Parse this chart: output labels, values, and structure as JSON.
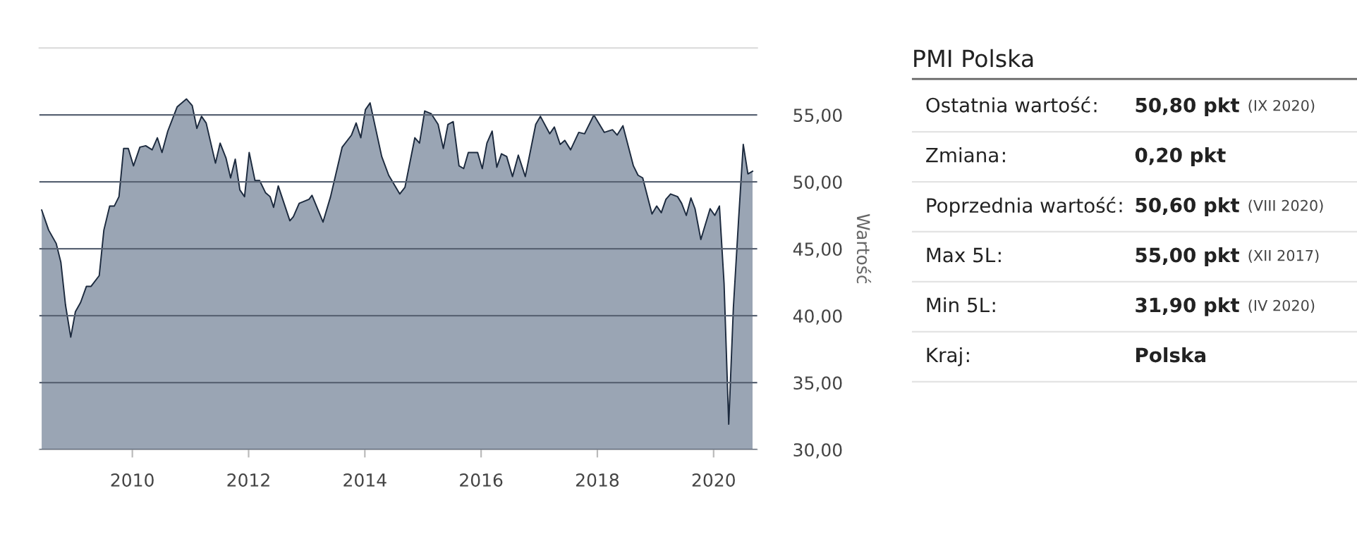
{
  "chart_data": [
    {
      "type": "area",
      "ylabel": "Wartość",
      "xlim": [
        2008.4,
        2020.75
      ],
      "ylim": [
        30,
        60
      ],
      "xticks": [
        {
          "value": 2010,
          "label": "2010"
        },
        {
          "value": 2012,
          "label": "2012"
        },
        {
          "value": 2014,
          "label": "2014"
        },
        {
          "value": 2016,
          "label": "2016"
        },
        {
          "value": 2018,
          "label": "2018"
        },
        {
          "value": 2020,
          "label": "2020"
        }
      ],
      "yticks": [
        {
          "value": 30,
          "label": "30,00"
        },
        {
          "value": 35,
          "label": "35,00"
        },
        {
          "value": 40,
          "label": "40,00"
        },
        {
          "value": 45,
          "label": "45,00"
        },
        {
          "value": 50,
          "label": "50,00"
        },
        {
          "value": 55,
          "label": "55,00"
        }
      ],
      "grid": "y",
      "legend": false,
      "marker": "none",
      "line_style": "solid",
      "series": [
        {
          "color": "#9aa5b4",
          "x": [
            2008.44,
            2008.56,
            2008.69,
            2008.77,
            2008.85,
            2008.94,
            2009.02,
            2009.11,
            2009.21,
            2009.29,
            2009.43,
            2009.51,
            2009.61,
            2009.69,
            2009.77,
            2009.85,
            2009.93,
            2010.02,
            2010.13,
            2010.23,
            2010.34,
            2010.43,
            2010.51,
            2010.61,
            2010.77,
            2010.93,
            2011.03,
            2011.11,
            2011.19,
            2011.27,
            2011.43,
            2011.51,
            2011.61,
            2011.69,
            2011.77,
            2011.85,
            2011.93,
            2012.01,
            2012.11,
            2012.19,
            2012.29,
            2012.37,
            2012.43,
            2012.51,
            2012.61,
            2012.71,
            2012.77,
            2012.87,
            2013.04,
            2013.09,
            2013.28,
            2013.41,
            2013.61,
            2013.77,
            2013.85,
            2013.93,
            2014.01,
            2014.09,
            2014.29,
            2014.41,
            2014.6,
            2014.69,
            2014.86,
            2014.94,
            2015.03,
            2015.14,
            2015.26,
            2015.35,
            2015.43,
            2015.52,
            2015.62,
            2015.7,
            2015.78,
            2015.94,
            2016.02,
            2016.1,
            2016.19,
            2016.27,
            2016.35,
            2016.44,
            2016.54,
            2016.64,
            2016.76,
            2016.94,
            2017.02,
            2017.18,
            2017.26,
            2017.36,
            2017.44,
            2017.54,
            2017.68,
            2017.78,
            2017.94,
            2018.12,
            2018.26,
            2018.34,
            2018.44,
            2018.62,
            2018.7,
            2018.78,
            2018.94,
            2019.02,
            2019.1,
            2019.18,
            2019.26,
            2019.38,
            2019.45,
            2019.53,
            2019.61,
            2019.68,
            2019.78,
            2019.94,
            2020.02,
            2020.1,
            2020.18,
            2020.26,
            2020.34,
            2020.43,
            2020.51,
            2020.59,
            2020.67
          ],
          "values": [
            47.9,
            46.4,
            45.4,
            44.0,
            40.8,
            38.4,
            40.3,
            41.0,
            42.2,
            42.2,
            43.0,
            46.4,
            48.2,
            48.2,
            48.9,
            52.5,
            52.5,
            51.2,
            52.6,
            52.7,
            52.4,
            53.3,
            52.2,
            53.8,
            55.6,
            56.2,
            55.7,
            54.0,
            54.9,
            54.4,
            51.4,
            52.9,
            51.8,
            50.3,
            51.7,
            49.4,
            48.9,
            52.2,
            50.1,
            50.1,
            49.2,
            48.9,
            48.1,
            49.7,
            48.4,
            47.1,
            47.4,
            48.4,
            48.7,
            49.0,
            47.0,
            48.9,
            52.6,
            53.5,
            54.4,
            53.3,
            55.4,
            55.9,
            51.9,
            50.5,
            49.1,
            49.6,
            53.3,
            52.9,
            55.3,
            55.1,
            54.3,
            52.5,
            54.3,
            54.5,
            51.2,
            51.0,
            52.2,
            52.2,
            51.0,
            52.9,
            53.8,
            51.1,
            52.1,
            51.9,
            50.4,
            52.0,
            50.4,
            54.3,
            54.9,
            53.6,
            54.1,
            52.8,
            53.1,
            52.4,
            53.7,
            53.6,
            55.0,
            53.7,
            53.9,
            53.5,
            54.2,
            51.2,
            50.5,
            50.3,
            47.6,
            48.2,
            47.7,
            48.7,
            49.1,
            48.9,
            48.4,
            47.5,
            48.8,
            48.0,
            45.7,
            48.0,
            47.5,
            48.2,
            42.4,
            31.9,
            40.6,
            47.2,
            52.8,
            50.6,
            50.8
          ]
        }
      ]
    },
    {
      "type": "other",
      "title": "PMI Polska",
      "categories": [
        "Ostatnia wartość",
        "Zmiana",
        "Poprzednia wartość",
        "Max 5L",
        "Min 5L",
        "Kraj"
      ],
      "annotations": [
        ":"
      ],
      "value_labels": [
        "50,80 pkt (IX 2020)",
        "0,20 pkt",
        "50,60 pkt (VIII 2020)",
        "55,00 pkt (XII 2017)",
        "31,90 pkt (IV 2020)",
        "Polska"
      ]
    }
  ]
}
